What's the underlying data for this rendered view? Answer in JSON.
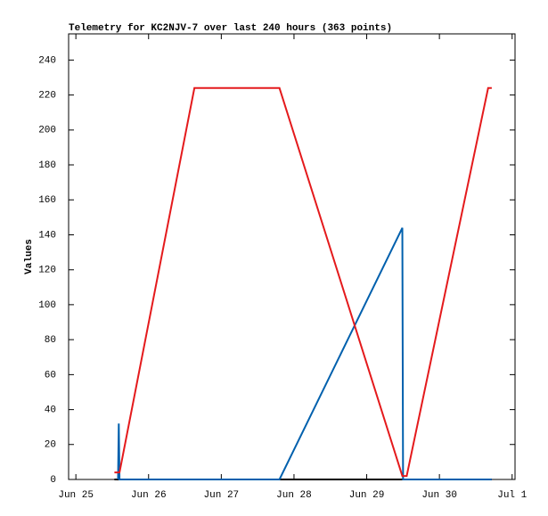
{
  "chart_data": {
    "type": "line",
    "title": "Telemetry for KC2NJV-7 over last 240 hours (363 points)",
    "y_label": "Values",
    "xlim": [
      -0.1,
      6.04
    ],
    "ylim": [
      0,
      255
    ],
    "xticks": [
      {
        "value": 0,
        "label": "Jun 25"
      },
      {
        "value": 1,
        "label": "Jun 26"
      },
      {
        "value": 2,
        "label": "Jun 27"
      },
      {
        "value": 3,
        "label": "Jun 28"
      },
      {
        "value": 4,
        "label": "Jun 29"
      },
      {
        "value": 5,
        "label": "Jun 30"
      },
      {
        "value": 6,
        "label": "Jul 1"
      }
    ],
    "yticks": [
      0,
      20,
      40,
      60,
      80,
      100,
      120,
      140,
      160,
      180,
      200,
      220,
      240
    ],
    "series": [
      {
        "color": "#000000",
        "x": [
          0.53,
          5.72
        ],
        "values": [
          0,
          0
        ]
      },
      {
        "color": "#0060ad",
        "x": [
          0.58,
          0.59,
          0.6,
          2.8,
          4.49,
          4.5,
          5.72
        ],
        "values": [
          0,
          32,
          0,
          0,
          144,
          0,
          0
        ]
      },
      {
        "color": "#e41a1c",
        "x": [
          0.53,
          0.6,
          1.63,
          2.8,
          4.49,
          4.55,
          5.67,
          5.72
        ],
        "values": [
          4,
          4,
          224,
          224,
          2,
          2,
          224,
          224
        ]
      }
    ]
  }
}
